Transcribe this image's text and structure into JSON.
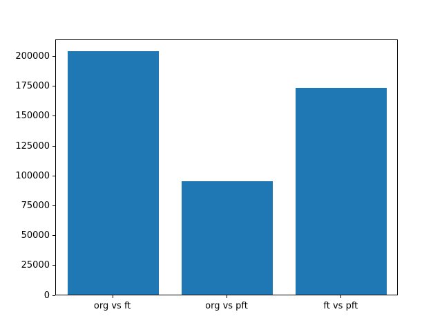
{
  "figure": {
    "background": "#ffffff",
    "text_color": "#000000",
    "spine_color": "#000000"
  },
  "chart_data": {
    "type": "bar",
    "title": "",
    "xlabel": "",
    "ylabel": "",
    "categories": [
      "org vs ft",
      "org vs pft",
      "ft vs pft"
    ],
    "values": [
      204000,
      95000,
      173000
    ],
    "bar_color": "#1f77b4",
    "bar_width_fraction": 0.8,
    "ylim": [
      0,
      214200
    ],
    "yticks": [
      0,
      25000,
      50000,
      75000,
      100000,
      125000,
      150000,
      175000,
      200000
    ],
    "grid": false,
    "legend": "none"
  }
}
